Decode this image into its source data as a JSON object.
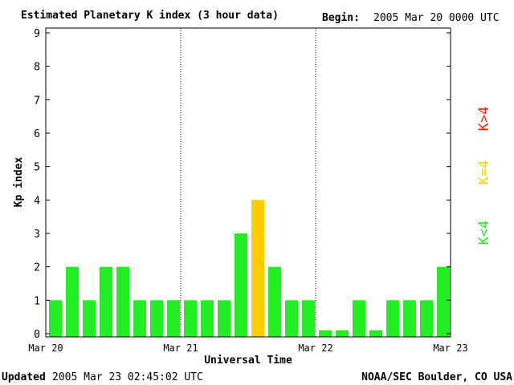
{
  "chart_data": {
    "type": "bar",
    "title": "Estimated Planetary K index (3 hour data)",
    "begin_label": "Begin:",
    "begin_value": "2005 Mar 20 0000 UTC",
    "xlabel": "Universal Time",
    "ylabel": "Kp index",
    "ylim": [
      0,
      9
    ],
    "y_ticks": [
      "0",
      "1",
      "2",
      "3",
      "4",
      "5",
      "6",
      "7",
      "8",
      "9"
    ],
    "x_tick_labels": [
      "Mar 20",
      "Mar 21",
      "Mar 22",
      "Mar 23"
    ],
    "day_separators": true,
    "bar_interval_hours": 3,
    "values": [
      1,
      2,
      1,
      2,
      2,
      1,
      1,
      1,
      1,
      1,
      1,
      3,
      4,
      2,
      1,
      1,
      0.1,
      0.1,
      1,
      0.1,
      1,
      1,
      1,
      2
    ],
    "legend": [
      {
        "label": "K<4",
        "color": "#22ee22"
      },
      {
        "label": "K=4",
        "color": "#ffcc00"
      },
      {
        "label": "K>4",
        "color": "#ff2200"
      }
    ],
    "colors": {
      "low": "#22ee22",
      "moderate": "#ffcc00",
      "high": "#ff2200"
    }
  },
  "footer": {
    "updated_label": "Updated",
    "updated_value": "2005 Mar 23 02:45:02 UTC",
    "source": "NOAA/SEC Boulder, CO USA"
  }
}
